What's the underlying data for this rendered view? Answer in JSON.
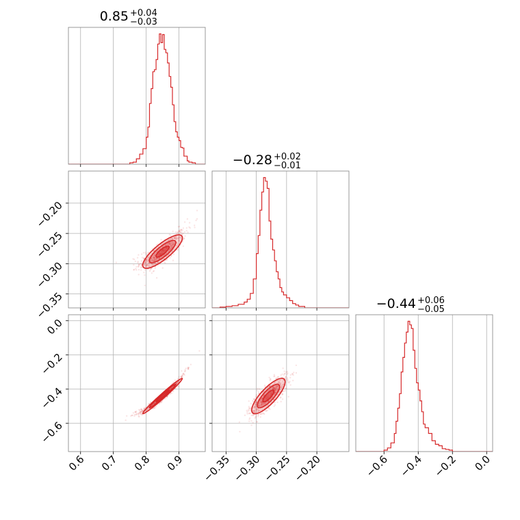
{
  "chart_data": [
    {
      "type": "histogram",
      "panel": "hist-p1",
      "title": {
        "value": "0.85",
        "plus": "+0.04",
        "minus": "−0.03"
      },
      "xlim": [
        0.563,
        0.98
      ],
      "xticks": [
        0.6,
        0.7,
        0.8,
        0.9
      ],
      "xtick_labels": [
        "0.6",
        "0.7",
        "0.8",
        "0.9"
      ],
      "bins": [
        0.74,
        0.75,
        0.76,
        0.77,
        0.78,
        0.79,
        0.8,
        0.805,
        0.81,
        0.815,
        0.82,
        0.825,
        0.83,
        0.835,
        0.84,
        0.845,
        0.85,
        0.855,
        0.86,
        0.865,
        0.87,
        0.875,
        0.88,
        0.885,
        0.89,
        0.895,
        0.9,
        0.905,
        0.91,
        0.915,
        0.92,
        0.925,
        0.93,
        0.94,
        0.95,
        0.96
      ],
      "counts": [
        0,
        2,
        3,
        8,
        15,
        23,
        40,
        55,
        90,
        112,
        137,
        140,
        155,
        178,
        193,
        180,
        192,
        170,
        165,
        150,
        130,
        114,
        88,
        63,
        48,
        40,
        35,
        25,
        24,
        12,
        12,
        5,
        3,
        2,
        0
      ],
      "color": "#d62728"
    },
    {
      "type": "histogram",
      "panel": "hist-p2",
      "title": {
        "value": "−0.28",
        "plus": "+0.02",
        "minus": "−0.01"
      },
      "xlim": [
        -0.373,
        -0.147
      ],
      "xticks": [
        -0.35,
        -0.3,
        -0.25,
        -0.2
      ],
      "xtick_labels": [
        "−0.35",
        "−0.30",
        "−0.25",
        "−0.20"
      ],
      "bins": [
        -0.36,
        -0.35,
        -0.34,
        -0.33,
        -0.32,
        -0.315,
        -0.31,
        -0.305,
        -0.3,
        -0.297,
        -0.294,
        -0.291,
        -0.288,
        -0.285,
        -0.282,
        -0.279,
        -0.276,
        -0.273,
        -0.27,
        -0.267,
        -0.264,
        -0.261,
        -0.258,
        -0.255,
        -0.25,
        -0.245,
        -0.24,
        -0.235,
        -0.23,
        -0.22,
        -0.21
      ],
      "counts": [
        1,
        2,
        3,
        5,
        8,
        12,
        20,
        40,
        75,
        100,
        135,
        160,
        180,
        175,
        165,
        120,
        95,
        80,
        65,
        50,
        40,
        28,
        22,
        18,
        14,
        10,
        6,
        4,
        2,
        0
      ],
      "color": "#d62728"
    },
    {
      "type": "histogram",
      "panel": "hist-p3",
      "title": {
        "value": "−0.44",
        "plus": "+0.06",
        "minus": "−0.05"
      },
      "xlim": [
        -0.765,
        0.035
      ],
      "xticks": [
        -0.6,
        -0.4,
        -0.2,
        0.0
      ],
      "xtick_labels": [
        "−0.6",
        "−0.4",
        "−0.2",
        "0.0"
      ],
      "bins": [
        -0.62,
        -0.6,
        -0.58,
        -0.56,
        -0.54,
        -0.53,
        -0.52,
        -0.51,
        -0.5,
        -0.49,
        -0.48,
        -0.47,
        -0.46,
        -0.45,
        -0.44,
        -0.43,
        -0.42,
        -0.41,
        -0.4,
        -0.39,
        -0.38,
        -0.37,
        -0.36,
        -0.34,
        -0.32,
        -0.3,
        -0.28,
        -0.26,
        -0.24,
        -0.22,
        -0.2
      ],
      "counts": [
        0,
        2,
        5,
        12,
        25,
        42,
        60,
        80,
        110,
        130,
        150,
        165,
        180,
        175,
        170,
        140,
        115,
        95,
        85,
        70,
        55,
        38,
        33,
        25,
        15,
        10,
        8,
        4,
        3,
        2
      ],
      "color": "#d62728"
    },
    {
      "type": "scatter-density",
      "panel": "pair-p1-p2",
      "x_param": "p1",
      "y_param": "p2",
      "xlim": [
        0.563,
        0.98
      ],
      "ylim": [
        -0.373,
        -0.147
      ],
      "yticks": [
        -0.35,
        -0.3,
        -0.25,
        -0.2
      ],
      "ytick_labels": [
        "−0.35",
        "−0.30",
        "−0.25",
        "−0.20"
      ],
      "mean": [
        0.85,
        -0.28
      ],
      "std": [
        0.035,
        0.016
      ],
      "correlation": 0.82,
      "contour_levels_sigma": [
        0.5,
        1.0,
        1.5
      ],
      "color": "#d62728"
    },
    {
      "type": "scatter-density",
      "panel": "pair-p1-p3",
      "x_param": "p1",
      "y_param": "p3",
      "xlim": [
        0.563,
        0.98
      ],
      "ylim": [
        -0.765,
        0.035
      ],
      "yticks": [
        -0.6,
        -0.4,
        -0.2,
        0.0
      ],
      "ytick_labels": [
        "−0.6",
        "−0.4",
        "−0.2",
        "0.0"
      ],
      "mean": [
        0.85,
        -0.44
      ],
      "std": [
        0.035,
        0.06
      ],
      "correlation": 0.985,
      "contour_levels_sigma": [
        0.5,
        1.0,
        1.5
      ],
      "color": "#d62728"
    },
    {
      "type": "scatter-density",
      "panel": "pair-p2-p3",
      "x_param": "p2",
      "y_param": "p3",
      "xlim": [
        -0.373,
        -0.147
      ],
      "ylim": [
        -0.765,
        0.035
      ],
      "mean": [
        -0.28,
        -0.44
      ],
      "std": [
        0.016,
        0.06
      ],
      "correlation": 0.8,
      "contour_levels_sigma": [
        0.5,
        1.0,
        1.5
      ],
      "color": "#d62728"
    }
  ]
}
